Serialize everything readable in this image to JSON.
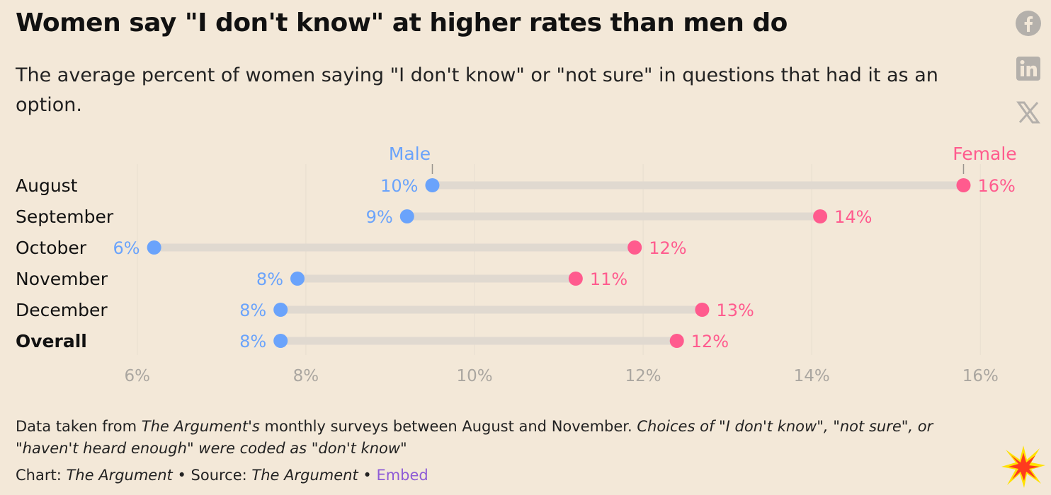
{
  "header": {
    "title": "Women say \"I don't know\" at higher rates than men do",
    "subtitle": "The average percent of women saying \"I don't know\" or \"not sure\" in questions that had it as an option."
  },
  "share": {
    "facebook_icon": "facebook-icon",
    "linkedin_icon": "linkedin-icon",
    "x_icon": "x-icon"
  },
  "chart_data": {
    "type": "dot-range",
    "categories": [
      "August",
      "September",
      "October",
      "November",
      "December",
      "Overall"
    ],
    "series": [
      {
        "name": "Male",
        "color": "#6aa3fb",
        "values": [
          9.5,
          9.2,
          6.2,
          7.9,
          7.7,
          7.7
        ],
        "labels": [
          "10%",
          "9%",
          "6%",
          "8%",
          "8%",
          "8%"
        ]
      },
      {
        "name": "Female",
        "color": "#ff5b8e",
        "values": [
          15.8,
          14.1,
          11.9,
          11.2,
          12.7,
          12.4
        ],
        "labels": [
          "16%",
          "14%",
          "12%",
          "11%",
          "13%",
          "12%"
        ]
      }
    ],
    "x_ticks": [
      {
        "value": 6,
        "label": "6%"
      },
      {
        "value": 8,
        "label": "8%"
      },
      {
        "value": 10,
        "label": "10%"
      },
      {
        "value": 12,
        "label": "12%"
      },
      {
        "value": 14,
        "label": "14%"
      },
      {
        "value": 16,
        "label": "16%"
      }
    ],
    "xlim": [
      5.8,
      16.3
    ],
    "bold_category": "Overall",
    "grid": true
  },
  "footer": {
    "note_prefix": "Data taken from ",
    "note_source": "The Argument's",
    "note_middle": " monthly surveys between August and November. ",
    "note_italic": "Choices of \"I don't know\", \"not sure\", or \"haven't heard enough\" were coded as \"don't know\"",
    "chart_label": "Chart: ",
    "chart_by": "The Argument",
    "separator1": " • ",
    "source_label": "Source: ",
    "source_by": "The Argument",
    "separator2": " • ",
    "embed_label": "Embed"
  },
  "colors": {
    "background": "#f3e8d8",
    "male": "#6aa3fb",
    "female": "#ff5b8e",
    "connector": "#e0d9d0",
    "grid": "#ebe1d2",
    "tick": "#aaa6a0",
    "embed": "#8e5bd6"
  },
  "logo_icon": "burst-logo-icon"
}
